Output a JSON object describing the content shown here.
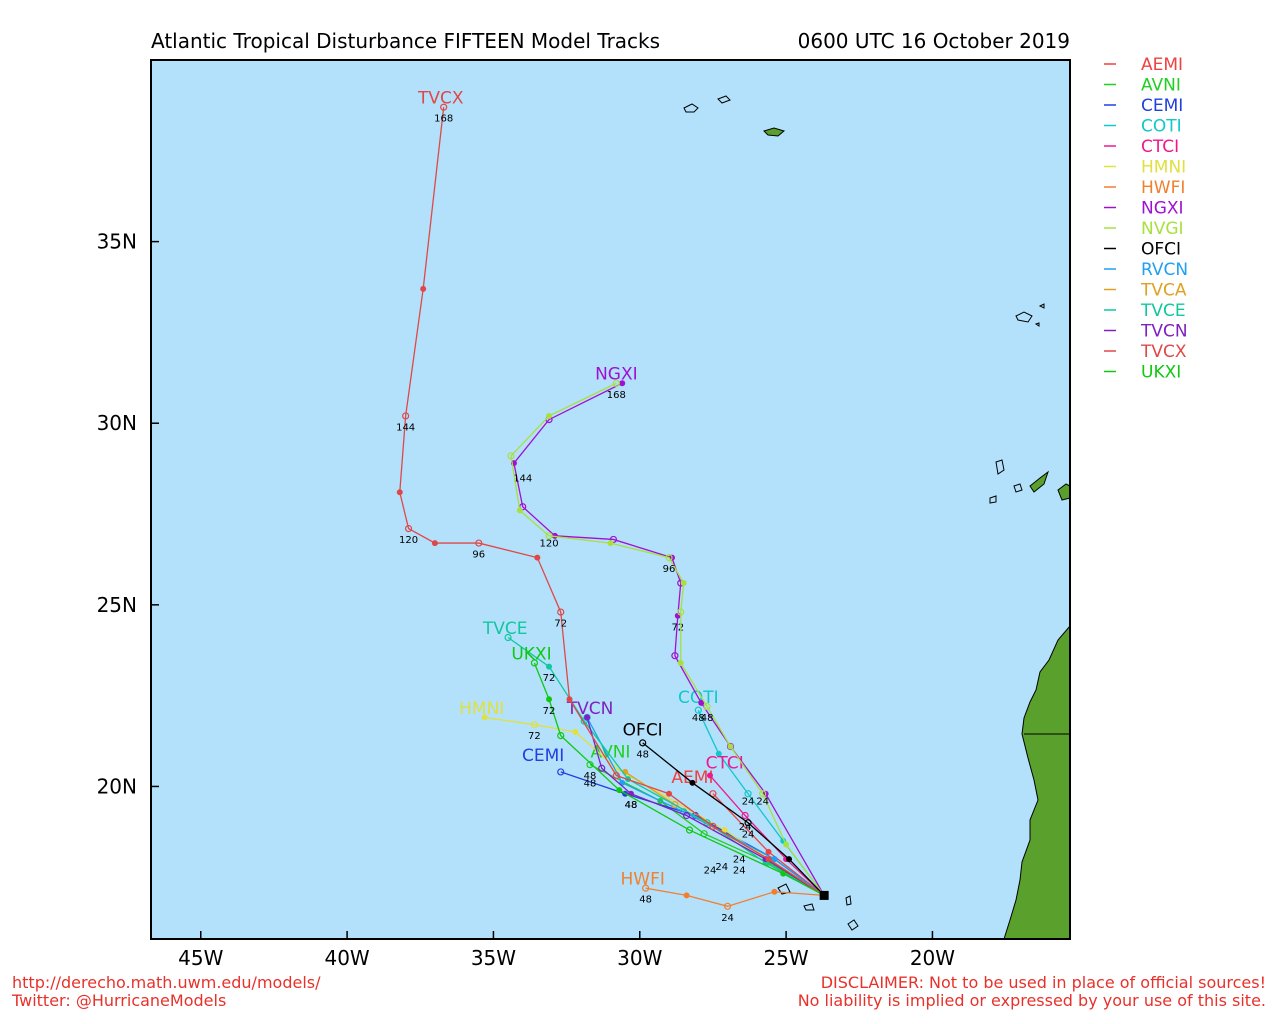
{
  "header": {
    "title": "Atlantic Tropical Disturbance FIFTEEN Model Tracks",
    "time": "0600 UTC 16 October 2019"
  },
  "footer": {
    "url": "http://derecho.math.uwm.edu/models/",
    "twitter": "Twitter: @HurricaneModels",
    "disclaimer1": "DISCLAIMER: Not to be used in place of official sources!",
    "disclaimer2": "No liability is implied or expressed by your use of this site."
  },
  "colors": {
    "ocean": "#b3e1fb",
    "land": "#5aa02c"
  },
  "chart_data": {
    "type": "line",
    "xlim": [
      -46.7,
      -15.3
    ],
    "ylim": [
      15.8,
      40.0
    ],
    "x_ticks": [
      {
        "value": -45,
        "label": "45W"
      },
      {
        "value": -40,
        "label": "40W"
      },
      {
        "value": -35,
        "label": "35W"
      },
      {
        "value": -30,
        "label": "30W"
      },
      {
        "value": -25,
        "label": "25W"
      },
      {
        "value": -20,
        "label": "20W"
      }
    ],
    "y_ticks": [
      {
        "value": 20,
        "label": "20N"
      },
      {
        "value": 25,
        "label": "25N"
      },
      {
        "value": 30,
        "label": "30N"
      },
      {
        "value": 35,
        "label": "35N"
      }
    ],
    "legend_position": "right-outside",
    "start_point": {
      "lon": -23.7,
      "lat": 17.0
    },
    "series": [
      {
        "name": "AEMI",
        "color": "#f04040",
        "points": [
          [
            -23.7,
            17.0
          ],
          [
            -25.6,
            18.2
          ],
          [
            -27.5,
            19.8
          ]
        ],
        "label": {
          "text": "AEMI",
          "lon": -28.2,
          "lat": 20.1
        }
      },
      {
        "name": "AVNI",
        "color": "#20d020",
        "points": [
          [
            -23.7,
            17.0
          ],
          [
            -25.6,
            17.9
          ],
          [
            -27.8,
            18.7
          ],
          [
            -29.3,
            19.6
          ],
          [
            -31.7,
            20.6
          ]
        ],
        "hour_labels": [
          {
            "text": "24",
            "lon": -27.2,
            "lat": 17.7
          },
          {
            "text": "48",
            "lon": -31.7,
            "lat": 20.2
          }
        ],
        "label": {
          "text": "AVNI",
          "lon": -31.0,
          "lat": 20.8
        }
      },
      {
        "name": "CEMI",
        "color": "#2040e0",
        "points": [
          [
            -23.7,
            17.0
          ],
          [
            -25.4,
            18.0
          ],
          [
            -28.1,
            19.2
          ],
          [
            -30.5,
            19.8
          ],
          [
            -32.7,
            20.4
          ]
        ],
        "hour_labels": [
          {
            "text": "24",
            "lon": -26.6,
            "lat": 17.9
          },
          {
            "text": "48",
            "lon": -31.7,
            "lat": 20.0
          }
        ],
        "label": {
          "text": "CEMI",
          "lon": -33.3,
          "lat": 20.7
        }
      },
      {
        "name": "COTI",
        "color": "#10c8c8",
        "points": [
          [
            -23.7,
            17.0
          ],
          [
            -25.1,
            18.5
          ],
          [
            -26.3,
            19.8
          ],
          [
            -27.3,
            20.9
          ],
          [
            -28.0,
            22.1
          ]
        ],
        "hour_labels": [
          {
            "text": "24",
            "lon": -26.3,
            "lat": 19.5
          },
          {
            "text": "48",
            "lon": -28.0,
            "lat": 21.8
          }
        ],
        "label": {
          "text": "COTI",
          "lon": -28.0,
          "lat": 22.3
        }
      },
      {
        "name": "CTCI",
        "color": "#f01890",
        "points": [
          [
            -23.7,
            17.0
          ],
          [
            -25.0,
            18.0
          ],
          [
            -26.4,
            19.2
          ],
          [
            -27.6,
            20.3
          ]
        ],
        "hour_labels": [
          {
            "text": "24",
            "lon": -26.4,
            "lat": 18.8
          }
        ],
        "label": {
          "text": "CTCI",
          "lon": -27.1,
          "lat": 20.5
        }
      },
      {
        "name": "HMNI",
        "color": "#e0e040",
        "points": [
          [
            -23.7,
            17.0
          ],
          [
            -27.1,
            18.8
          ],
          [
            -30.8,
            20.5
          ],
          [
            -32.2,
            21.5
          ],
          [
            -33.6,
            21.7
          ],
          [
            -35.3,
            21.9
          ]
        ],
        "hour_labels": [
          {
            "text": "72",
            "lon": -33.6,
            "lat": 21.3
          }
        ],
        "label": {
          "text": "HMNI",
          "lon": -35.4,
          "lat": 22.0
        }
      },
      {
        "name": "HWFI",
        "color": "#f08030",
        "points": [
          [
            -23.7,
            17.0
          ],
          [
            -25.4,
            17.1
          ],
          [
            -27.0,
            16.7
          ],
          [
            -28.4,
            17.0
          ],
          [
            -29.8,
            17.2
          ]
        ],
        "hour_labels": [
          {
            "text": "24",
            "lon": -27.0,
            "lat": 16.3
          },
          {
            "text": "48",
            "lon": -29.8,
            "lat": 16.8
          }
        ],
        "label": {
          "text": "HWFI",
          "lon": -29.9,
          "lat": 17.3
        }
      },
      {
        "name": "NGXI",
        "color": "#a010d0",
        "points": [
          [
            -23.7,
            17.0
          ],
          [
            -25.7,
            19.8
          ],
          [
            -26.9,
            21.1
          ],
          [
            -27.9,
            22.3
          ],
          [
            -28.8,
            23.6
          ],
          [
            -28.7,
            24.7
          ],
          [
            -28.6,
            25.6
          ],
          [
            -28.9,
            26.3
          ],
          [
            -30.9,
            26.8
          ],
          [
            -32.9,
            26.9
          ],
          [
            -34.0,
            27.7
          ],
          [
            -34.3,
            28.9
          ],
          [
            -33.1,
            30.1
          ],
          [
            -30.6,
            31.1
          ]
        ],
        "hour_labels": [
          {
            "text": "72",
            "lon": -28.7,
            "lat": 24.3
          },
          {
            "text": "144",
            "lon": -34.0,
            "lat": 28.4
          },
          {
            "text": "168",
            "lon": -30.8,
            "lat": 30.7
          }
        ],
        "label": {
          "text": "NGXI",
          "lon": -30.8,
          "lat": 31.2
        }
      },
      {
        "name": "NVGI",
        "color": "#a8e040",
        "points": [
          [
            -23.7,
            17.0
          ],
          [
            -25.0,
            18.4
          ],
          [
            -25.8,
            19.8
          ],
          [
            -26.9,
            21.1
          ],
          [
            -27.7,
            22.2
          ],
          [
            -28.6,
            23.4
          ],
          [
            -28.6,
            24.8
          ],
          [
            -28.5,
            25.6
          ],
          [
            -29.0,
            26.3
          ],
          [
            -31.0,
            26.7
          ],
          [
            -33.1,
            26.9
          ],
          [
            -34.1,
            27.6
          ],
          [
            -34.4,
            29.1
          ],
          [
            -33.1,
            30.2
          ],
          [
            -30.8,
            31.1
          ]
        ],
        "hour_labels": [
          {
            "text": "24",
            "lon": -25.8,
            "lat": 19.5
          },
          {
            "text": "48",
            "lon": -27.7,
            "lat": 21.8
          },
          {
            "text": "96",
            "lon": -29.0,
            "lat": 25.9
          },
          {
            "text": "120",
            "lon": -33.1,
            "lat": 26.6
          }
        ]
      },
      {
        "name": "OFCI",
        "color": "#000000",
        "points": [
          [
            -23.7,
            17.0
          ],
          [
            -24.9,
            18.0
          ],
          [
            -26.3,
            19.0
          ],
          [
            -28.2,
            20.1
          ],
          [
            -29.9,
            21.2
          ]
        ],
        "hour_labels": [
          {
            "text": "24",
            "lon": -26.3,
            "lat": 18.6
          },
          {
            "text": "48",
            "lon": -29.9,
            "lat": 20.8
          }
        ],
        "label": {
          "text": "OFCI",
          "lon": -29.9,
          "lat": 21.4
        }
      },
      {
        "name": "RVCN",
        "color": "#20a0f0",
        "points": [
          [
            -23.7,
            17.0
          ],
          [
            -25.4,
            18.0
          ],
          [
            -28.5,
            19.3
          ],
          [
            -30.6,
            20.1
          ],
          [
            -31.8,
            21.9
          ]
        ]
      },
      {
        "name": "TVCA",
        "color": "#e0a020",
        "points": [
          [
            -23.7,
            17.0
          ],
          [
            -25.6,
            18.0
          ],
          [
            -28.8,
            19.5
          ],
          [
            -30.5,
            20.4
          ]
        ]
      },
      {
        "name": "TVCE",
        "color": "#10c8a0",
        "points": [
          [
            -23.7,
            17.0
          ],
          [
            -25.7,
            17.9
          ],
          [
            -27.7,
            19.0
          ],
          [
            -30.4,
            20.2
          ],
          [
            -31.9,
            21.8
          ],
          [
            -33.1,
            23.3
          ],
          [
            -34.5,
            24.1
          ]
        ],
        "hour_labels": [
          {
            "text": "24",
            "lon": -26.6,
            "lat": 17.6
          },
          {
            "text": "72",
            "lon": -33.1,
            "lat": 22.9
          }
        ],
        "label": {
          "text": "TVCE",
          "lon": -34.6,
          "lat": 24.2
        }
      },
      {
        "name": "TVCN",
        "color": "#8020c0",
        "points": [
          [
            -23.7,
            17.0
          ],
          [
            -25.7,
            18.0
          ],
          [
            -28.4,
            19.2
          ],
          [
            -30.3,
            19.8
          ],
          [
            -31.3,
            20.5
          ],
          [
            -31.8,
            21.9
          ]
        ],
        "hour_labels": [
          {
            "text": "48",
            "lon": -30.3,
            "lat": 19.4
          }
        ],
        "label": {
          "text": "TVCN",
          "lon": -31.7,
          "lat": 22.0
        }
      },
      {
        "name": "TVCX",
        "color": "#e04848",
        "points": [
          [
            -23.7,
            17.0
          ],
          [
            -25.6,
            18.0
          ],
          [
            -27.5,
            18.9
          ],
          [
            -29.0,
            19.8
          ],
          [
            -30.8,
            20.3
          ],
          [
            -32.4,
            22.4
          ],
          [
            -32.7,
            24.8
          ],
          [
            -33.5,
            26.3
          ],
          [
            -35.5,
            26.7
          ],
          [
            -37.0,
            26.7
          ],
          [
            -37.9,
            27.1
          ],
          [
            -38.2,
            28.1
          ],
          [
            -38.0,
            30.2
          ],
          [
            -37.4,
            33.7
          ],
          [
            -36.7,
            38.7
          ]
        ],
        "hour_labels": [
          {
            "text": "72",
            "lon": -32.7,
            "lat": 24.4
          },
          {
            "text": "96",
            "lon": -35.5,
            "lat": 26.3
          },
          {
            "text": "120",
            "lon": -37.9,
            "lat": 26.7
          },
          {
            "text": "144",
            "lon": -38.0,
            "lat": 29.8
          },
          {
            "text": "168",
            "lon": -36.7,
            "lat": 38.3
          }
        ],
        "label": {
          "text": "TVCX",
          "lon": -36.8,
          "lat": 38.8
        }
      },
      {
        "name": "UKXI",
        "color": "#10c810",
        "points": [
          [
            -23.7,
            17.0
          ],
          [
            -25.1,
            17.6
          ],
          [
            -28.3,
            18.8
          ],
          [
            -30.7,
            19.9
          ],
          [
            -32.7,
            21.4
          ],
          [
            -33.1,
            22.4
          ],
          [
            -33.6,
            23.4
          ]
        ],
        "hour_labels": [
          {
            "text": "24",
            "lon": -27.6,
            "lat": 17.6
          },
          {
            "text": "48",
            "lon": -30.3,
            "lat": 19.4
          },
          {
            "text": "72",
            "lon": -33.1,
            "lat": 22.0
          }
        ],
        "label": {
          "text": "UKXI",
          "lon": -33.7,
          "lat": 23.5
        }
      }
    ]
  }
}
